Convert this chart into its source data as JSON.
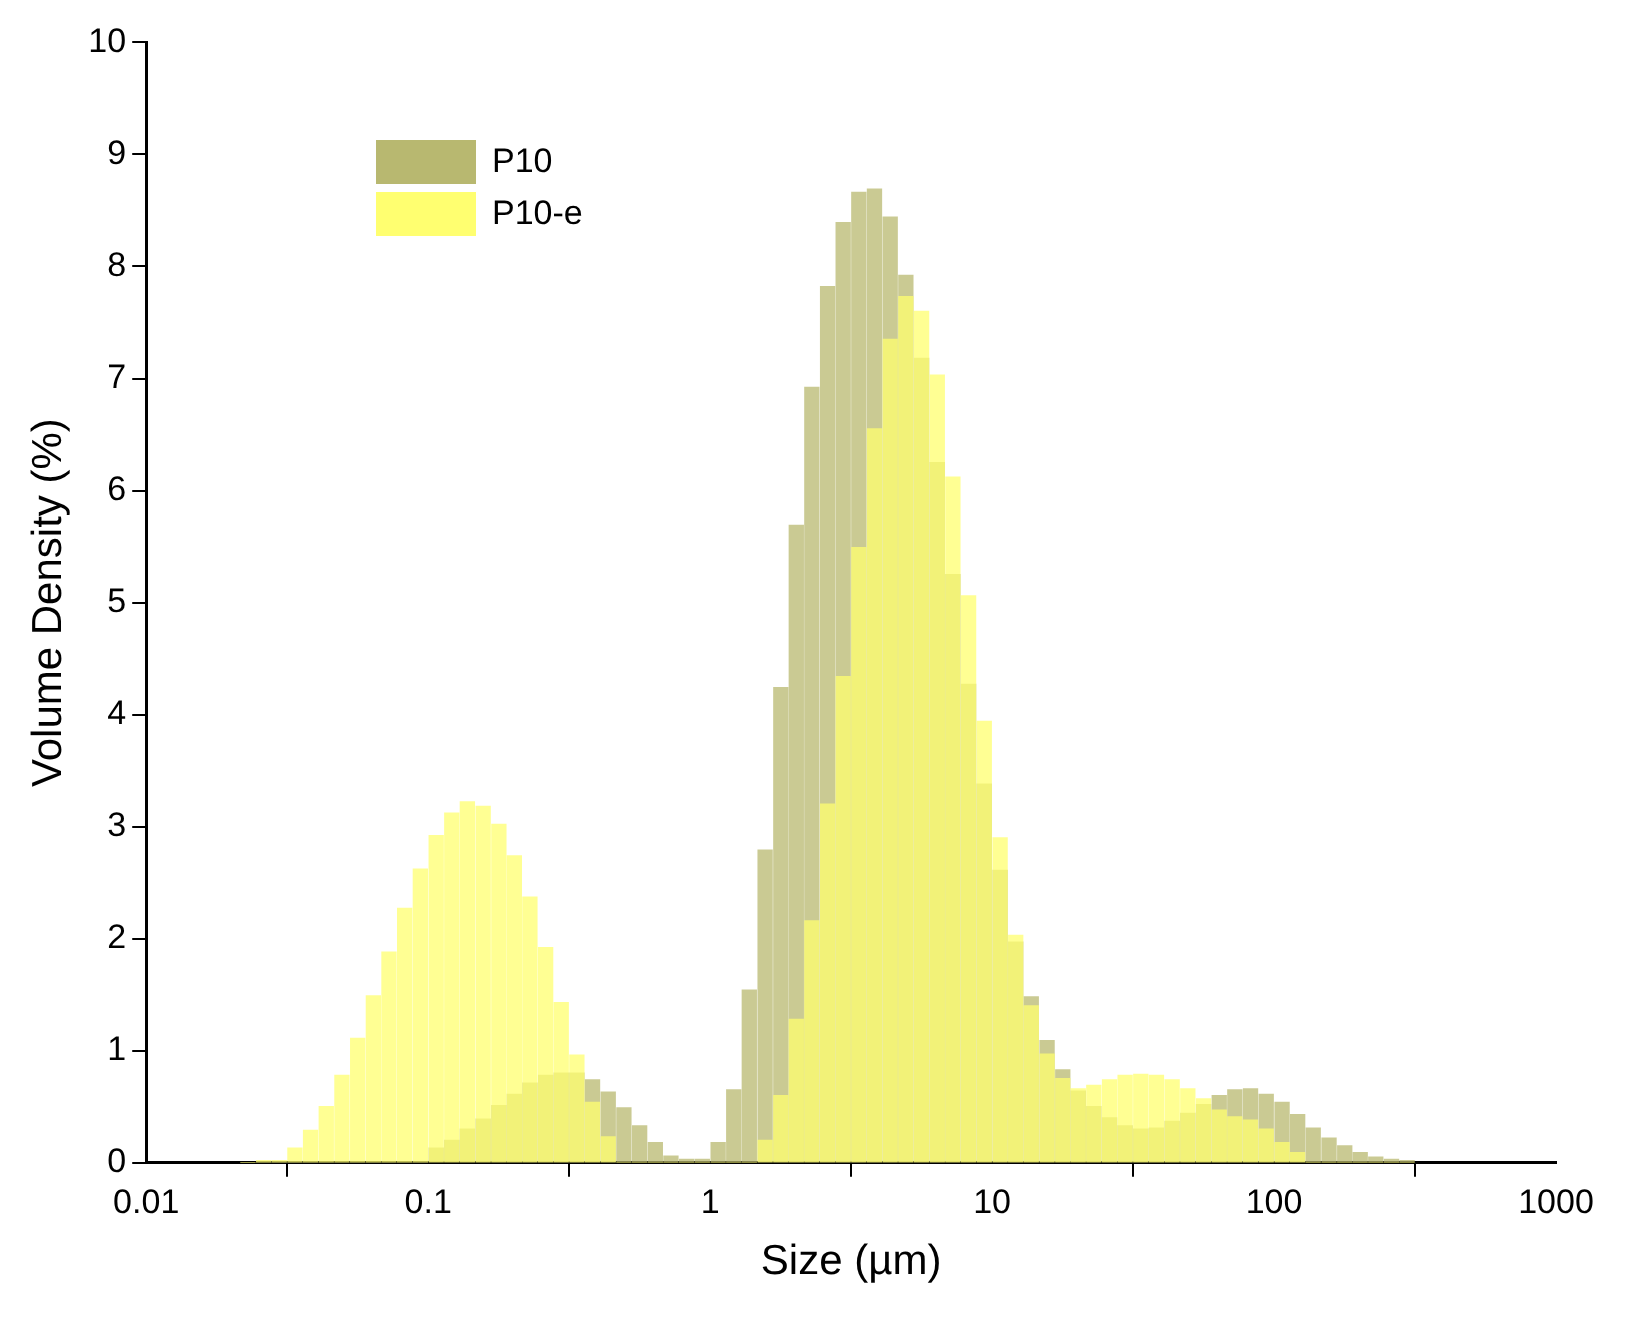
{
  "chart_data": {
    "type": "histogram",
    "xlabel": "Size (µm)",
    "ylabel": "Volume Density (%)",
    "log": "x",
    "grid": false,
    "legend": "top left",
    "xlim": [
      0.01,
      1000
    ],
    "xticks": [
      0.01,
      0.1,
      1,
      10,
      100,
      1000
    ],
    "ylim": [
      0,
      10
    ],
    "yticks": [
      0,
      1,
      2,
      3,
      4,
      5,
      6,
      7,
      8,
      9,
      10
    ],
    "bins": [
      0.0215,
      0.0245,
      0.0278,
      0.0316,
      0.0359,
      0.0408,
      0.0464,
      0.0527,
      0.06,
      0.0681,
      0.0774,
      0.088,
      0.1,
      0.114,
      0.129,
      0.147,
      0.167,
      0.19,
      0.215,
      0.245,
      0.278,
      0.316,
      0.359,
      0.408,
      0.464,
      0.527,
      0.6,
      0.681,
      0.774,
      0.88,
      1,
      1.14,
      1.29,
      1.47,
      1.67,
      1.9,
      2.15,
      2.45,
      2.78,
      3.16,
      3.59,
      4.08,
      4.64,
      5.27,
      6,
      6.81,
      7.74,
      8.8,
      10,
      11.4,
      12.9,
      14.7,
      16.7,
      19,
      21.5,
      24.5,
      27.8,
      31.6,
      35.9,
      40.8,
      46.4,
      52.7,
      60,
      68.1,
      77.4,
      88,
      100,
      114,
      129,
      147,
      167,
      190,
      215,
      245,
      278,
      316
    ],
    "series": [
      {
        "name": "P10",
        "color": "#b8b870",
        "values": [
          0,
          0,
          0,
          0,
          0,
          0,
          0,
          0,
          0,
          0,
          0,
          0,
          0.13,
          0.2,
          0.3,
          0.39,
          0.51,
          0.61,
          0.71,
          0.78,
          0.8,
          0.8,
          0.74,
          0.63,
          0.49,
          0.33,
          0.18,
          0.06,
          0.03,
          0.03,
          0.18,
          0.65,
          1.54,
          2.79,
          4.24,
          5.69,
          6.92,
          7.82,
          8.39,
          8.66,
          8.69,
          8.44,
          7.92,
          7.18,
          6.25,
          5.25,
          4.27,
          3.38,
          2.61,
          1.97,
          1.48,
          1.09,
          0.83,
          0.64,
          0.5,
          0.4,
          0.33,
          0.3,
          0.31,
          0.37,
          0.44,
          0.52,
          0.6,
          0.65,
          0.66,
          0.61,
          0.54,
          0.43,
          0.31,
          0.22,
          0.15,
          0.09,
          0.05,
          0.03,
          0.02
        ]
      },
      {
        "name": "P10-e",
        "color": "#ffff70",
        "values": [
          0,
          0.02,
          0.02,
          0.13,
          0.29,
          0.5,
          0.78,
          1.11,
          1.49,
          1.88,
          2.27,
          2.62,
          2.92,
          3.12,
          3.22,
          3.18,
          3.02,
          2.74,
          2.37,
          1.92,
          1.43,
          0.96,
          0.54,
          0.23,
          0,
          0,
          0,
          0,
          0,
          0,
          0,
          0,
          0,
          0.2,
          0.6,
          1.28,
          2.16,
          3.2,
          4.34,
          5.49,
          6.55,
          7.35,
          7.73,
          7.6,
          7.03,
          6.12,
          5.06,
          3.94,
          2.9,
          2.03,
          1.4,
          0.97,
          0.75,
          0.66,
          0.69,
          0.74,
          0.78,
          0.79,
          0.78,
          0.74,
          0.66,
          0.57,
          0.47,
          0.41,
          0.38,
          0.3,
          0.18,
          0.09,
          0,
          0,
          0,
          0,
          0,
          0,
          0
        ]
      }
    ]
  }
}
